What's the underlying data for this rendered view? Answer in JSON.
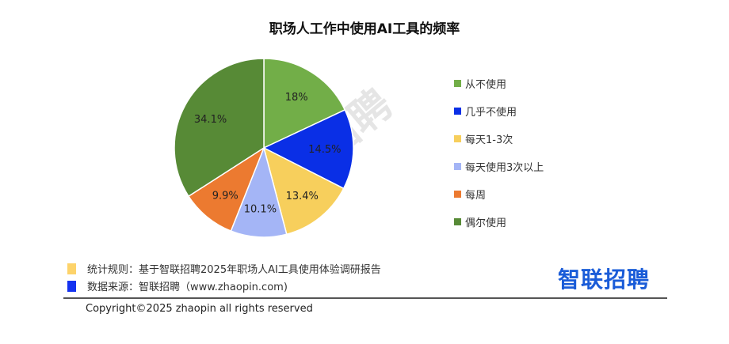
{
  "chart_data": {
    "type": "pie",
    "title": "职场人工作中使用AI工具的频率",
    "slices": [
      {
        "label": "从不使用",
        "value": 18,
        "display": "18%",
        "color": "#72ae48"
      },
      {
        "label": "几乎不使用",
        "value": 14.5,
        "display": "14.5%",
        "color": "#0a2fe6"
      },
      {
        "label": "每天1-3次",
        "value": 13.4,
        "display": "13.4%",
        "color": "#f7cf5c"
      },
      {
        "label": "每天使用3次以上",
        "value": 10.1,
        "display": "10.1%",
        "color": "#a4b5f6"
      },
      {
        "label": "每周",
        "value": 9.9,
        "display": "9.9%",
        "color": "#ec7a30"
      },
      {
        "label": "偶尔使用",
        "value": 34.1,
        "display": "34.1%",
        "color": "#578a36"
      }
    ],
    "legend_position": "right"
  },
  "watermark": "智联招聘",
  "footer": {
    "rule": "统计规则：基于智联招聘2025年职场人AI工具使用体验调研报告",
    "source": "数据来源：智联招聘（www.zhaopin.com)",
    "rule_color": "#fdd36a",
    "source_color": "#1432f0",
    "copyright": "Copyright©2025 zhaopin all rights reserved",
    "logo": "智联招聘"
  }
}
